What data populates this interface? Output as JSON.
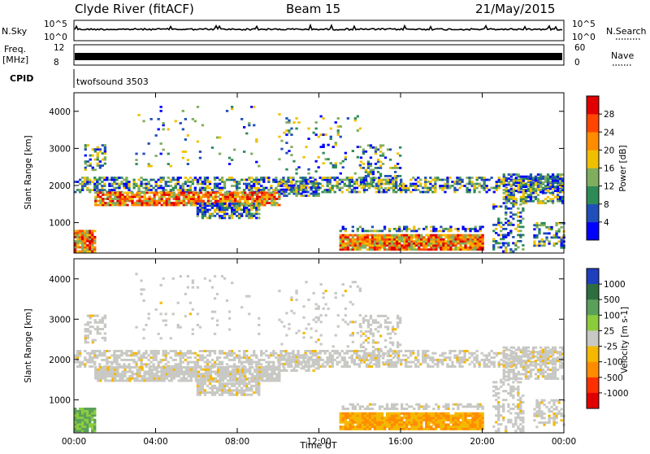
{
  "header": {
    "station": "Clyde River (fitACF)",
    "beam": "Beam 15",
    "date": "21/May/2015"
  },
  "strip_labels": {
    "nsky": "N.Sky",
    "nsearch": "N.Search",
    "freq": "Freq.",
    "freq_unit": "[MHz]",
    "nave": "Nave",
    "cpid": "CPID",
    "cpid_name": "twofsound 3503",
    "noise_top": "10^5",
    "noise_bottom": "10^0",
    "freq_top": "12",
    "freq_bottom": "8",
    "nave_top": "60",
    "nave_bottom": "0"
  },
  "colors": {
    "power": [
      "#0000ff",
      "#1f4fb8",
      "#2e8b57",
      "#7fae5f",
      "#f0c000",
      "#ff8c00",
      "#ff4500",
      "#e00000"
    ],
    "velocity": [
      "#1f3fbf",
      "#2e6e3e",
      "#5aa05a",
      "#8ccc3c",
      "#c8c8c4",
      "#f5b800",
      "#ff8c00",
      "#ff3000",
      "#e00000"
    ]
  },
  "chart_data": [
    {
      "type": "heatmap",
      "name": "power",
      "xlabel": "",
      "ylabel": "Slant Range [km]",
      "x_ticks": [
        "00:00",
        "04:00",
        "08:00",
        "12:00",
        "16:00",
        "20:00",
        "00:00"
      ],
      "y_ticks": [
        1000,
        2000,
        3000,
        4000
      ],
      "ylim": [
        180,
        4500
      ],
      "colorbar": {
        "label": "Power [dB]",
        "ticks": [
          4,
          8,
          12,
          16,
          20,
          24,
          28
        ],
        "range": [
          0,
          32
        ]
      }
    },
    {
      "type": "heatmap",
      "name": "velocity",
      "xlabel": "Time UT",
      "ylabel": "Slant Range [km]",
      "x_ticks": [
        "00:00",
        "04:00",
        "08:00",
        "12:00",
        "16:00",
        "20:00",
        "00:00"
      ],
      "y_ticks": [
        1000,
        2000,
        3000,
        4000
      ],
      "ylim": [
        180,
        4500
      ],
      "colorbar": {
        "label": "Velocity [m s-1]",
        "ticks": [
          "1000",
          "500",
          "100",
          "25",
          "-25",
          "-100",
          "-500",
          "-1000"
        ]
      }
    }
  ]
}
